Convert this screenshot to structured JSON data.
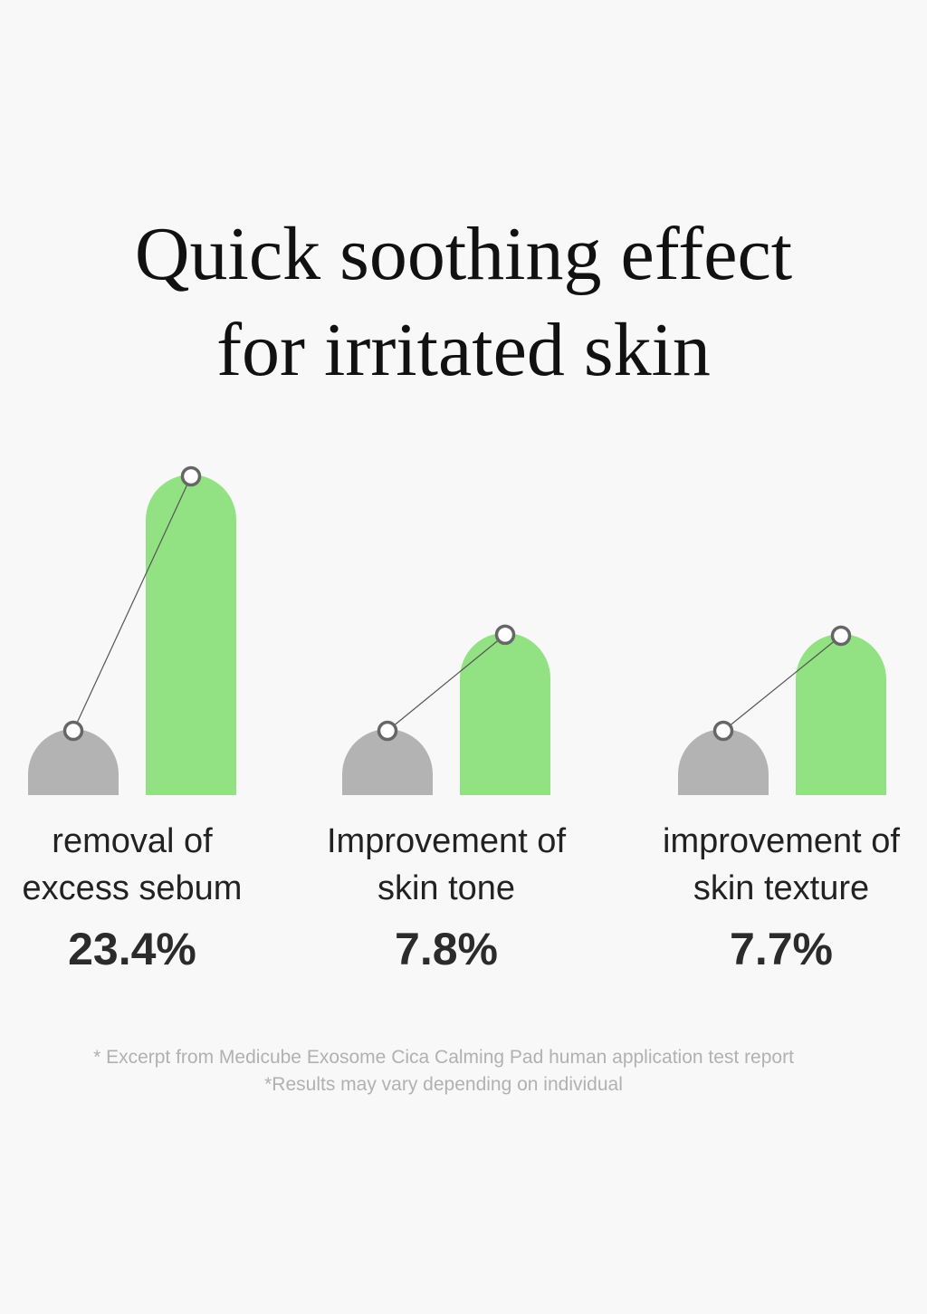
{
  "title": {
    "line1": "Quick soothing effect",
    "line2": "for irritated skin"
  },
  "chart_data": {
    "type": "bar",
    "categories": [
      {
        "line1": "removal of",
        "line2": "excess sebum"
      },
      {
        "line1": "Improvement of",
        "line2": "skin tone"
      },
      {
        "line1": "improvement of",
        "line2": "skin texture"
      }
    ],
    "value_labels": [
      "23.4%",
      "7.8%",
      "7.7%"
    ],
    "values": [
      23.4,
      7.8,
      7.7
    ],
    "colors": {
      "before": "#b3b3b3",
      "after": "#92e283",
      "connector": "#555555",
      "dot_stroke": "#666666",
      "dot_fill": "#ffffff"
    }
  },
  "footnote": {
    "line1": "* Excerpt from Medicube Exosome Cica Calming Pad human application test report",
    "line2": "*Results may vary depending on individual"
  }
}
